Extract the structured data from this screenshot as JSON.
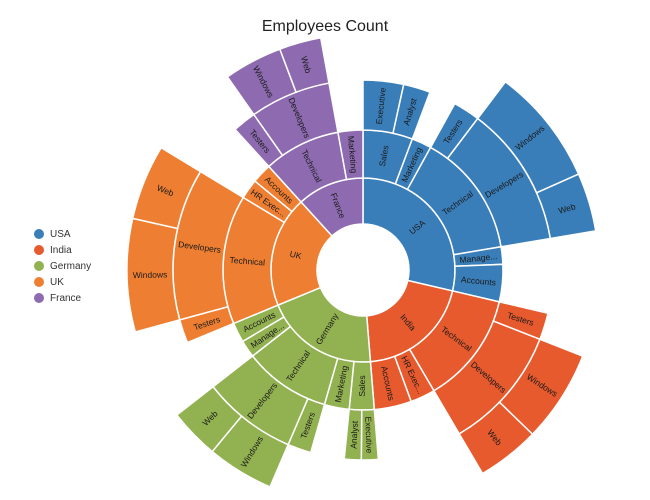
{
  "chart_data": {
    "type": "sunburst",
    "title": "Employees Count",
    "legend": [
      {
        "name": "USA",
        "color": "#3a7eb9"
      },
      {
        "name": "India",
        "color": "#e65a2e"
      },
      {
        "name": "Germany",
        "color": "#92b151"
      },
      {
        "name": "UK",
        "color": "#ee7f32"
      },
      {
        "name": "France",
        "color": "#8e6bb0"
      }
    ],
    "legend_position": "left",
    "hierarchy": [
      {
        "name": "USA",
        "value": 100,
        "children": [
          {
            "name": "Sales",
            "value": 20,
            "children": [
              {
                "name": "Executive",
                "value": 12
              },
              {
                "name": "Analyst",
                "value": 8
              }
            ]
          },
          {
            "name": "Marketing",
            "value": 8
          },
          {
            "name": "Technical",
            "value": 50,
            "children": [
              {
                "name": "Testers",
                "value": 8
              },
              {
                "name": "Developers",
                "value": 42,
                "children": [
                  {
                    "name": "Windows",
                    "value": 28
                  },
                  {
                    "name": "Web",
                    "value": 14
                  }
                ]
              }
            ]
          },
          {
            "name": "Manage...",
            "value": 7
          },
          {
            "name": "Accounts",
            "value": 15
          }
        ]
      },
      {
        "name": "India",
        "value": 70,
        "children": [
          {
            "name": "Technical",
            "value": 45,
            "children": [
              {
                "name": "Testers",
                "value": 8
              },
              {
                "name": "Developers",
                "value": 37,
                "children": [
                  {
                    "name": "Windows",
                    "value": 22
                  },
                  {
                    "name": "Web",
                    "value": 15
                  }
                ]
              }
            ]
          },
          {
            "name": "HR Exec...",
            "value": 10
          },
          {
            "name": "Accounts",
            "value": 15
          }
        ]
      },
      {
        "name": "Germany",
        "value": 70,
        "children": [
          {
            "name": "Sales",
            "value": 10,
            "children": [
              {
                "name": "Executive",
                "value": 5
              },
              {
                "name": "Analyst",
                "value": 5
              }
            ]
          },
          {
            "name": "Marketing",
            "value": 10
          },
          {
            "name": "Technical",
            "value": 35,
            "children": [
              {
                "name": "Testers",
                "value": 7
              },
              {
                "name": "Developers",
                "value": 28,
                "children": [
                  {
                    "name": "Windows",
                    "value": 16
                  },
                  {
                    "name": "Web",
                    "value": 12
                  }
                ]
              }
            ]
          },
          {
            "name": "Manage...",
            "value": 7
          },
          {
            "name": "Accounts",
            "value": 8
          }
        ]
      },
      {
        "name": "UK",
        "value": 68,
        "children": [
          {
            "name": "Technical",
            "value": 52,
            "children": [
              {
                "name": "Testers",
                "value": 7
              },
              {
                "name": "Developers",
                "value": 45,
                "children": [
                  {
                    "name": "Windows",
                    "value": 27
                  },
                  {
                    "name": "Web",
                    "value": 18
                  }
                ]
              }
            ]
          },
          {
            "name": "HR Exec...",
            "value": 8
          },
          {
            "name": "Accounts",
            "value": 8
          }
        ]
      },
      {
        "name": "France",
        "value": 41,
        "children": [
          {
            "name": "Technical",
            "value": 31,
            "children": [
              {
                "name": "Testers",
                "value": 7
              },
              {
                "name": "Developers",
                "value": 24,
                "children": [
                  {
                    "name": "Windows",
                    "value": 14
                  },
                  {
                    "name": "Web",
                    "value": 10
                  }
                ]
              }
            ]
          },
          {
            "name": "Marketing",
            "value": 10
          }
        ]
      }
    ]
  }
}
